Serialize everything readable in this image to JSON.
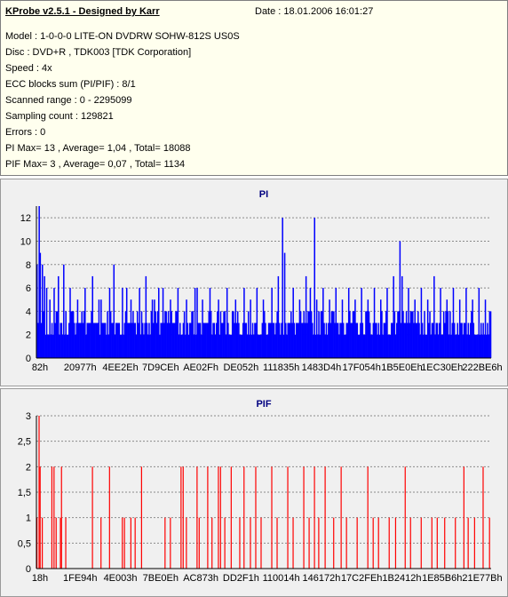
{
  "info": {
    "title": "KProbe v2.5.1 - Designed by Karr",
    "date": "Date : 18.01.2006 16:01:27",
    "lines": [
      "Model : 1-0-0-0 LITE-ON DVDRW SOHW-812S  US0S",
      "Disc : DVD+R , TDK003 [TDK Corporation]",
      "Speed : 4x",
      "ECC blocks sum (PI/PIF) : 8/1",
      "Scanned range : 0 - 2295099",
      "Sampling count : 129821",
      "Errors : 0",
      "PI Max= 13 , Average= 1,04 , Total= 18088",
      "PIF Max= 3 , Average= 0,07 , Total= 1134"
    ]
  },
  "colors": {
    "pi_bar": "#0000ff",
    "pif_bar": "#ff0000",
    "title": "#000080",
    "grid": "#8a8a8a",
    "panel": "#f0f0f0",
    "info_bg": "#ffffee"
  },
  "chart_data": [
    {
      "type": "bar",
      "title": "PI",
      "ylim": [
        0,
        13
      ],
      "yticks": [
        "0",
        "2",
        "4",
        "6",
        "8",
        "10",
        "12"
      ],
      "ytick_values": [
        0,
        2,
        4,
        6,
        8,
        10,
        12
      ],
      "x_tick_labels": [
        "82h",
        "20977h",
        "4EE2Eh",
        "7D9CEh",
        "AE02Fh",
        "DE052h",
        "111835h",
        "1483D4h",
        "17F054h",
        "1B5E0Eh",
        "1EC30Eh",
        "222BE6h"
      ],
      "grid": true,
      "n_samples": 426,
      "base_level": 3,
      "spikes": [
        [
          0,
          8
        ],
        [
          2,
          13
        ],
        [
          3,
          9
        ],
        [
          5,
          8
        ],
        [
          7,
          7
        ],
        [
          9,
          6
        ],
        [
          12,
          5
        ],
        [
          16,
          6
        ],
        [
          20,
          7
        ],
        [
          25,
          8
        ],
        [
          31,
          6
        ],
        [
          38,
          5
        ],
        [
          45,
          6
        ],
        [
          52,
          7
        ],
        [
          60,
          5
        ],
        [
          68,
          6
        ],
        [
          72,
          8
        ],
        [
          80,
          6
        ],
        [
          88,
          5
        ],
        [
          96,
          6
        ],
        [
          102,
          7
        ],
        [
          108,
          5
        ],
        [
          114,
          6
        ],
        [
          118,
          6
        ],
        [
          125,
          5
        ],
        [
          132,
          6
        ],
        [
          140,
          5
        ],
        [
          148,
          6
        ],
        [
          155,
          5
        ],
        [
          162,
          6
        ],
        [
          170,
          5
        ],
        [
          178,
          6
        ],
        [
          186,
          5
        ],
        [
          194,
          6
        ],
        [
          200,
          5
        ],
        [
          206,
          6
        ],
        [
          212,
          5
        ],
        [
          220,
          6
        ],
        [
          226,
          7
        ],
        [
          230,
          12
        ],
        [
          232,
          9
        ],
        [
          240,
          6
        ],
        [
          246,
          5
        ],
        [
          252,
          7
        ],
        [
          256,
          6
        ],
        [
          262,
          5
        ],
        [
          268,
          6
        ],
        [
          274,
          5
        ],
        [
          280,
          6
        ],
        [
          286,
          5
        ],
        [
          292,
          6
        ],
        [
          298,
          5
        ],
        [
          304,
          6
        ],
        [
          310,
          5
        ],
        [
          316,
          6
        ],
        [
          322,
          5
        ],
        [
          328,
          6
        ],
        [
          334,
          7
        ],
        [
          340,
          10
        ],
        [
          342,
          7
        ],
        [
          348,
          6
        ],
        [
          354,
          5
        ],
        [
          360,
          6
        ],
        [
          366,
          5
        ],
        [
          372,
          7
        ],
        [
          378,
          6
        ],
        [
          384,
          5
        ],
        [
          390,
          6
        ],
        [
          396,
          5
        ],
        [
          402,
          6
        ],
        [
          408,
          5
        ],
        [
          414,
          6
        ],
        [
          420,
          5
        ],
        [
          260,
          12
        ],
        [
          220,
          6
        ],
        [
          110,
          5
        ],
        [
          150,
          6
        ],
        [
          58,
          5
        ],
        [
          84,
          6
        ]
      ]
    },
    {
      "type": "bar",
      "title": "PIF",
      "ylim": [
        0,
        3
      ],
      "yticks": [
        "0",
        "0,5",
        "1",
        "1,5",
        "2",
        "2,5",
        "3"
      ],
      "ytick_values": [
        0,
        0.5,
        1,
        1.5,
        2,
        2.5,
        3
      ],
      "x_tick_labels": [
        "18h",
        "1FE94h",
        "4E003h",
        "7BE0Eh",
        "AC873h",
        "DD2F1h",
        "110014h",
        "146172h",
        "17C2FEh",
        "1B2412h",
        "1E85B6h",
        "21E77Bh"
      ],
      "grid": true,
      "n_samples": 426,
      "events": [
        [
          0,
          1
        ],
        [
          2,
          3
        ],
        [
          3,
          2
        ],
        [
          5,
          1
        ],
        [
          14,
          2
        ],
        [
          16,
          2
        ],
        [
          18,
          1
        ],
        [
          22,
          1
        ],
        [
          23,
          2
        ],
        [
          27,
          1
        ],
        [
          52,
          2
        ],
        [
          60,
          1
        ],
        [
          68,
          2
        ],
        [
          80,
          1
        ],
        [
          82,
          1
        ],
        [
          88,
          1
        ],
        [
          92,
          1
        ],
        [
          98,
          2
        ],
        [
          120,
          1
        ],
        [
          125,
          1
        ],
        [
          135,
          2
        ],
        [
          137,
          2
        ],
        [
          140,
          1
        ],
        [
          150,
          2
        ],
        [
          152,
          1
        ],
        [
          160,
          2
        ],
        [
          164,
          1
        ],
        [
          170,
          2
        ],
        [
          172,
          2
        ],
        [
          176,
          1
        ],
        [
          182,
          2
        ],
        [
          190,
          1
        ],
        [
          194,
          2
        ],
        [
          200,
          1
        ],
        [
          205,
          2
        ],
        [
          210,
          1
        ],
        [
          220,
          2
        ],
        [
          225,
          1
        ],
        [
          235,
          2
        ],
        [
          240,
          1
        ],
        [
          250,
          2
        ],
        [
          255,
          1
        ],
        [
          260,
          2
        ],
        [
          264,
          1
        ],
        [
          270,
          2
        ],
        [
          278,
          1
        ],
        [
          285,
          2
        ],
        [
          290,
          1
        ],
        [
          300,
          1
        ],
        [
          310,
          2
        ],
        [
          315,
          1
        ],
        [
          320,
          1
        ],
        [
          330,
          1
        ],
        [
          336,
          1
        ],
        [
          345,
          2
        ],
        [
          350,
          1
        ],
        [
          360,
          1
        ],
        [
          370,
          1
        ],
        [
          375,
          1
        ],
        [
          382,
          1
        ],
        [
          392,
          1
        ],
        [
          400,
          2
        ],
        [
          404,
          1
        ],
        [
          410,
          1
        ],
        [
          418,
          2
        ],
        [
          424,
          1
        ]
      ]
    }
  ]
}
